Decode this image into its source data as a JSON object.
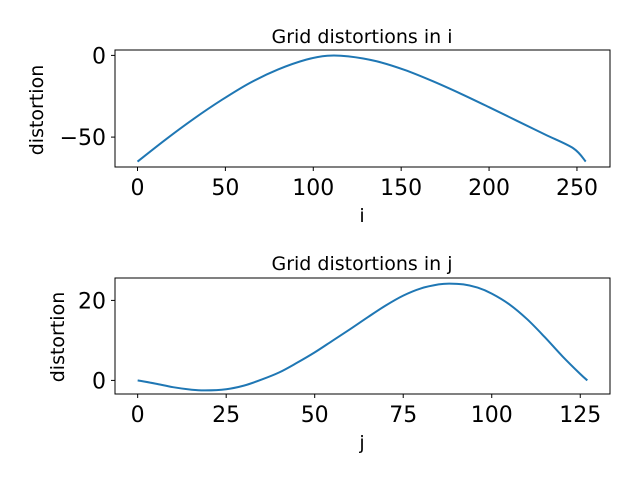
{
  "colors": {
    "line": "#1f77b4",
    "axes": "#000000",
    "background": "#ffffff"
  },
  "chart_data": [
    {
      "type": "line",
      "title": "Grid distortions in i",
      "xlabel": "i",
      "ylabel": "distortion",
      "xlim": [
        -12.8,
        268.8
      ],
      "ylim": [
        -68.3,
        3.3
      ],
      "xticks": [
        0,
        50,
        100,
        150,
        200,
        250
      ],
      "xtick_labels": [
        "0",
        "50",
        "100",
        "150",
        "200",
        "250"
      ],
      "yticks": [
        -50,
        0
      ],
      "ytick_labels": [
        "−50",
        "0"
      ],
      "grid": false,
      "x": [
        0,
        16,
        32,
        48,
        64,
        80,
        96,
        108,
        120,
        136,
        152,
        168,
        184,
        200,
        216,
        232,
        248,
        255
      ],
      "y": [
        -65.0,
        -51.5,
        -38.8,
        -27.2,
        -16.8,
        -8.6,
        -2.6,
        -0.2,
        -0.6,
        -3.6,
        -8.9,
        -15.8,
        -23.5,
        -31.7,
        -40.1,
        -48.5,
        -56.9,
        -65.0
      ]
    },
    {
      "type": "line",
      "title": "Grid distortions in j",
      "xlabel": "j",
      "ylabel": "distortion",
      "xlim": [
        -6.4,
        133.4
      ],
      "ylim": [
        -3.4,
        25.6
      ],
      "xticks": [
        0,
        25,
        50,
        75,
        100,
        125
      ],
      "xtick_labels": [
        "0",
        "25",
        "50",
        "75",
        "100",
        "125"
      ],
      "yticks": [
        0,
        20
      ],
      "ytick_labels": [
        "0",
        "20"
      ],
      "grid": false,
      "x": [
        0,
        5,
        10,
        15,
        19,
        25,
        30,
        35,
        40,
        45,
        50,
        55,
        60,
        65,
        70,
        75,
        80,
        85,
        88,
        92,
        96,
        100,
        105,
        110,
        115,
        120,
        125,
        127
      ],
      "y": [
        0,
        -0.8,
        -1.7,
        -2.3,
        -2.5,
        -2.2,
        -1.3,
        0.2,
        2.0,
        4.4,
        7.0,
        9.9,
        12.8,
        15.8,
        18.7,
        21.2,
        23.0,
        24.0,
        24.2,
        24.0,
        23.2,
        21.7,
        19.0,
        15.3,
        10.8,
        6.0,
        1.6,
        0
      ]
    }
  ]
}
